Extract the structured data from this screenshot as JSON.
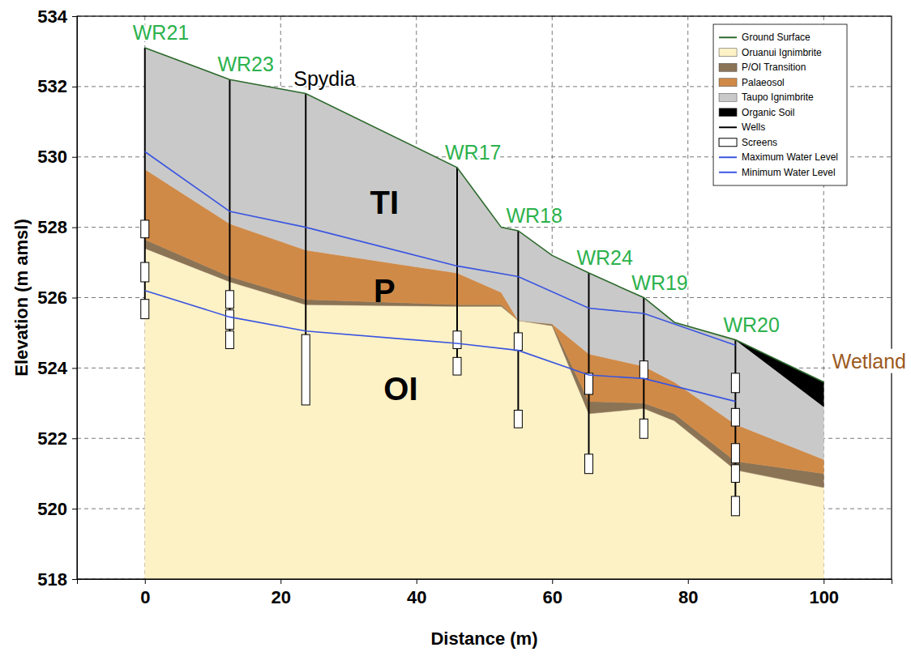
{
  "chart_data": {
    "type": "area",
    "x_label": "Distance (m)",
    "y_label": "Elevation (m amsl)",
    "xlim": [
      -10,
      110
    ],
    "ylim": [
      518,
      534
    ],
    "xticks": [
      0,
      20,
      40,
      60,
      80,
      100
    ],
    "yticks": [
      518,
      520,
      522,
      524,
      526,
      528,
      530,
      532,
      534
    ],
    "grid": true,
    "legend": "upper right",
    "x": [
      0,
      12.5,
      23.7,
      46,
      52.5,
      55,
      60,
      65.4,
      73.5,
      78,
      87,
      100
    ],
    "series": [
      {
        "name": "Ground Surface",
        "type": "line",
        "color": "#2d6a2d",
        "values": [
          533.1,
          532.2,
          531.8,
          529.7,
          528.0,
          527.9,
          527.2,
          526.7,
          526.0,
          525.3,
          524.8,
          523.6
        ]
      },
      {
        "name": "Oruanui Ignimbrite",
        "type": "area",
        "color": "#fdf1c6",
        "values": [
          527.4,
          526.45,
          525.8,
          525.75,
          525.75,
          525.35,
          525.2,
          522.7,
          522.85,
          522.5,
          521.1,
          520.6
        ]
      },
      {
        "name": "P/OI Transition",
        "type": "area",
        "color": "#8b7456",
        "values": [
          527.65,
          526.6,
          525.95,
          525.8,
          525.8,
          525.35,
          525.25,
          523.05,
          523.0,
          522.7,
          521.35,
          521.0
        ]
      },
      {
        "name": "Palaeosol",
        "type": "area",
        "color": "#d08a47",
        "values": [
          529.65,
          528.1,
          527.35,
          526.7,
          526.15,
          525.35,
          525.25,
          524.4,
          524.05,
          523.6,
          522.4,
          521.4
        ]
      },
      {
        "name": "Taupo Ignimbrite",
        "type": "area",
        "color": "#c9c9c9",
        "values": [
          533.1,
          532.2,
          531.8,
          529.7,
          528.0,
          527.9,
          527.2,
          526.7,
          526.0,
          525.3,
          524.8,
          522.9
        ]
      },
      {
        "name": "Organic Soil",
        "type": "area",
        "color": "#000000",
        "values": [
          null,
          null,
          null,
          null,
          null,
          null,
          null,
          null,
          null,
          null,
          524.8,
          523.6
        ]
      },
      {
        "name": "Wells",
        "type": "well",
        "color": "#000000",
        "x": [
          0,
          12.5,
          23.7,
          46,
          55,
          65.4,
          73.5,
          87
        ],
        "top": [
          533.1,
          532.2,
          531.8,
          529.7,
          527.9,
          526.7,
          526.0,
          524.8
        ],
        "values": [
          525.4,
          524.6,
          523.0,
          523.8,
          522.3,
          521.0,
          522.0,
          519.8
        ],
        "labels": [
          "WR21",
          "WR23",
          "Spydia",
          "WR17",
          "WR18",
          "WR24",
          "WR19",
          "WR20"
        ],
        "label_colors": [
          "#2bb24c",
          "#2bb24c",
          "#000000",
          "#2bb24c",
          "#2bb24c",
          "#2bb24c",
          "#2bb24c",
          "#2bb24c"
        ]
      },
      {
        "name": "Screens",
        "type": "screen",
        "color": "#ffffff",
        "x": [
          0,
          0,
          0,
          12.5,
          12.5,
          12.5,
          23.7,
          46,
          46,
          55,
          55,
          65.4,
          65.4,
          73.5,
          73.5,
          87,
          87,
          87,
          87,
          87
        ],
        "values": [
          528.2,
          527.0,
          525.95,
          526.2,
          525.65,
          525.05,
          524.95,
          525.05,
          524.3,
          525.0,
          522.8,
          523.85,
          521.55,
          524.2,
          522.55,
          523.85,
          522.85,
          521.85,
          521.25,
          520.35
        ],
        "bottom": [
          527.7,
          526.45,
          525.4,
          525.7,
          525.1,
          524.55,
          522.95,
          524.55,
          523.8,
          524.5,
          522.3,
          523.25,
          521.0,
          523.7,
          522.0,
          523.3,
          522.35,
          521.3,
          520.75,
          519.8
        ]
      },
      {
        "name": "Maximum Water Level",
        "type": "line",
        "color": "#3a55e0",
        "x": [
          0,
          12.5,
          23.7,
          46,
          55,
          65.4,
          73.5,
          87
        ],
        "values": [
          530.15,
          528.45,
          528.0,
          526.9,
          526.6,
          525.7,
          525.55,
          524.65
        ]
      },
      {
        "name": "Minimum Water Level",
        "type": "line",
        "color": "#3a55e0",
        "x": [
          0,
          12.5,
          23.7,
          46,
          55,
          65.4,
          73.5,
          87
        ],
        "values": [
          526.2,
          525.45,
          525.05,
          524.7,
          524.5,
          523.8,
          523.7,
          523.05
        ]
      }
    ],
    "annotations": [
      {
        "text": "TI",
        "color": "#000000"
      },
      {
        "text": "P",
        "color": "#000000"
      },
      {
        "text": "OI",
        "color": "#000000"
      },
      {
        "text": "Wetland",
        "color": "#9c5a1e"
      }
    ]
  }
}
